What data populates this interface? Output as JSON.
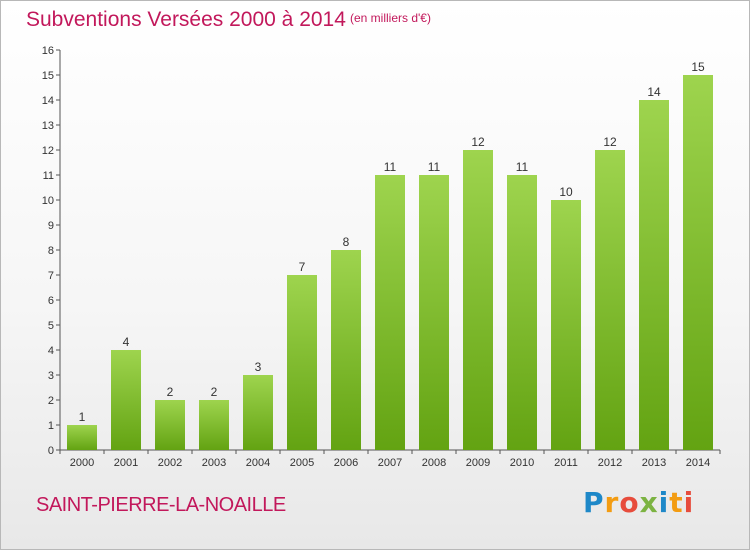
{
  "header": {
    "title": "Subventions Versées 2000 à 2014",
    "unit": "(en milliers d'€)"
  },
  "footer": {
    "commune": "SAINT-PIERRE-LA-NOAILLE",
    "logo_letters": [
      "P",
      "r",
      "o",
      "x",
      "i",
      "t",
      "i"
    ],
    "logo_colors": [
      "#1e88c8",
      "#f39c12",
      "#e74c3c",
      "#7cb342",
      "#1e88c8",
      "#f39c12",
      "#e74c3c"
    ]
  },
  "colors": {
    "bar_light": "#9ed44e",
    "bar_dark": "#63a312",
    "title": "#c2185b",
    "axis": "#555555"
  },
  "chart_data": {
    "type": "bar",
    "categories": [
      "2000",
      "2001",
      "2002",
      "2003",
      "2004",
      "2005",
      "2006",
      "2007",
      "2008",
      "2009",
      "2010",
      "2011",
      "2012",
      "2013",
      "2014"
    ],
    "values": [
      1,
      4,
      2,
      2,
      3,
      7,
      8,
      11,
      11,
      12,
      11,
      10,
      12,
      14,
      15
    ],
    "ylim": [
      0,
      16
    ],
    "yticks": [
      0,
      1,
      2,
      3,
      4,
      5,
      6,
      7,
      8,
      9,
      10,
      11,
      12,
      13,
      14,
      15,
      16
    ],
    "grid": false,
    "data_labels": true
  }
}
